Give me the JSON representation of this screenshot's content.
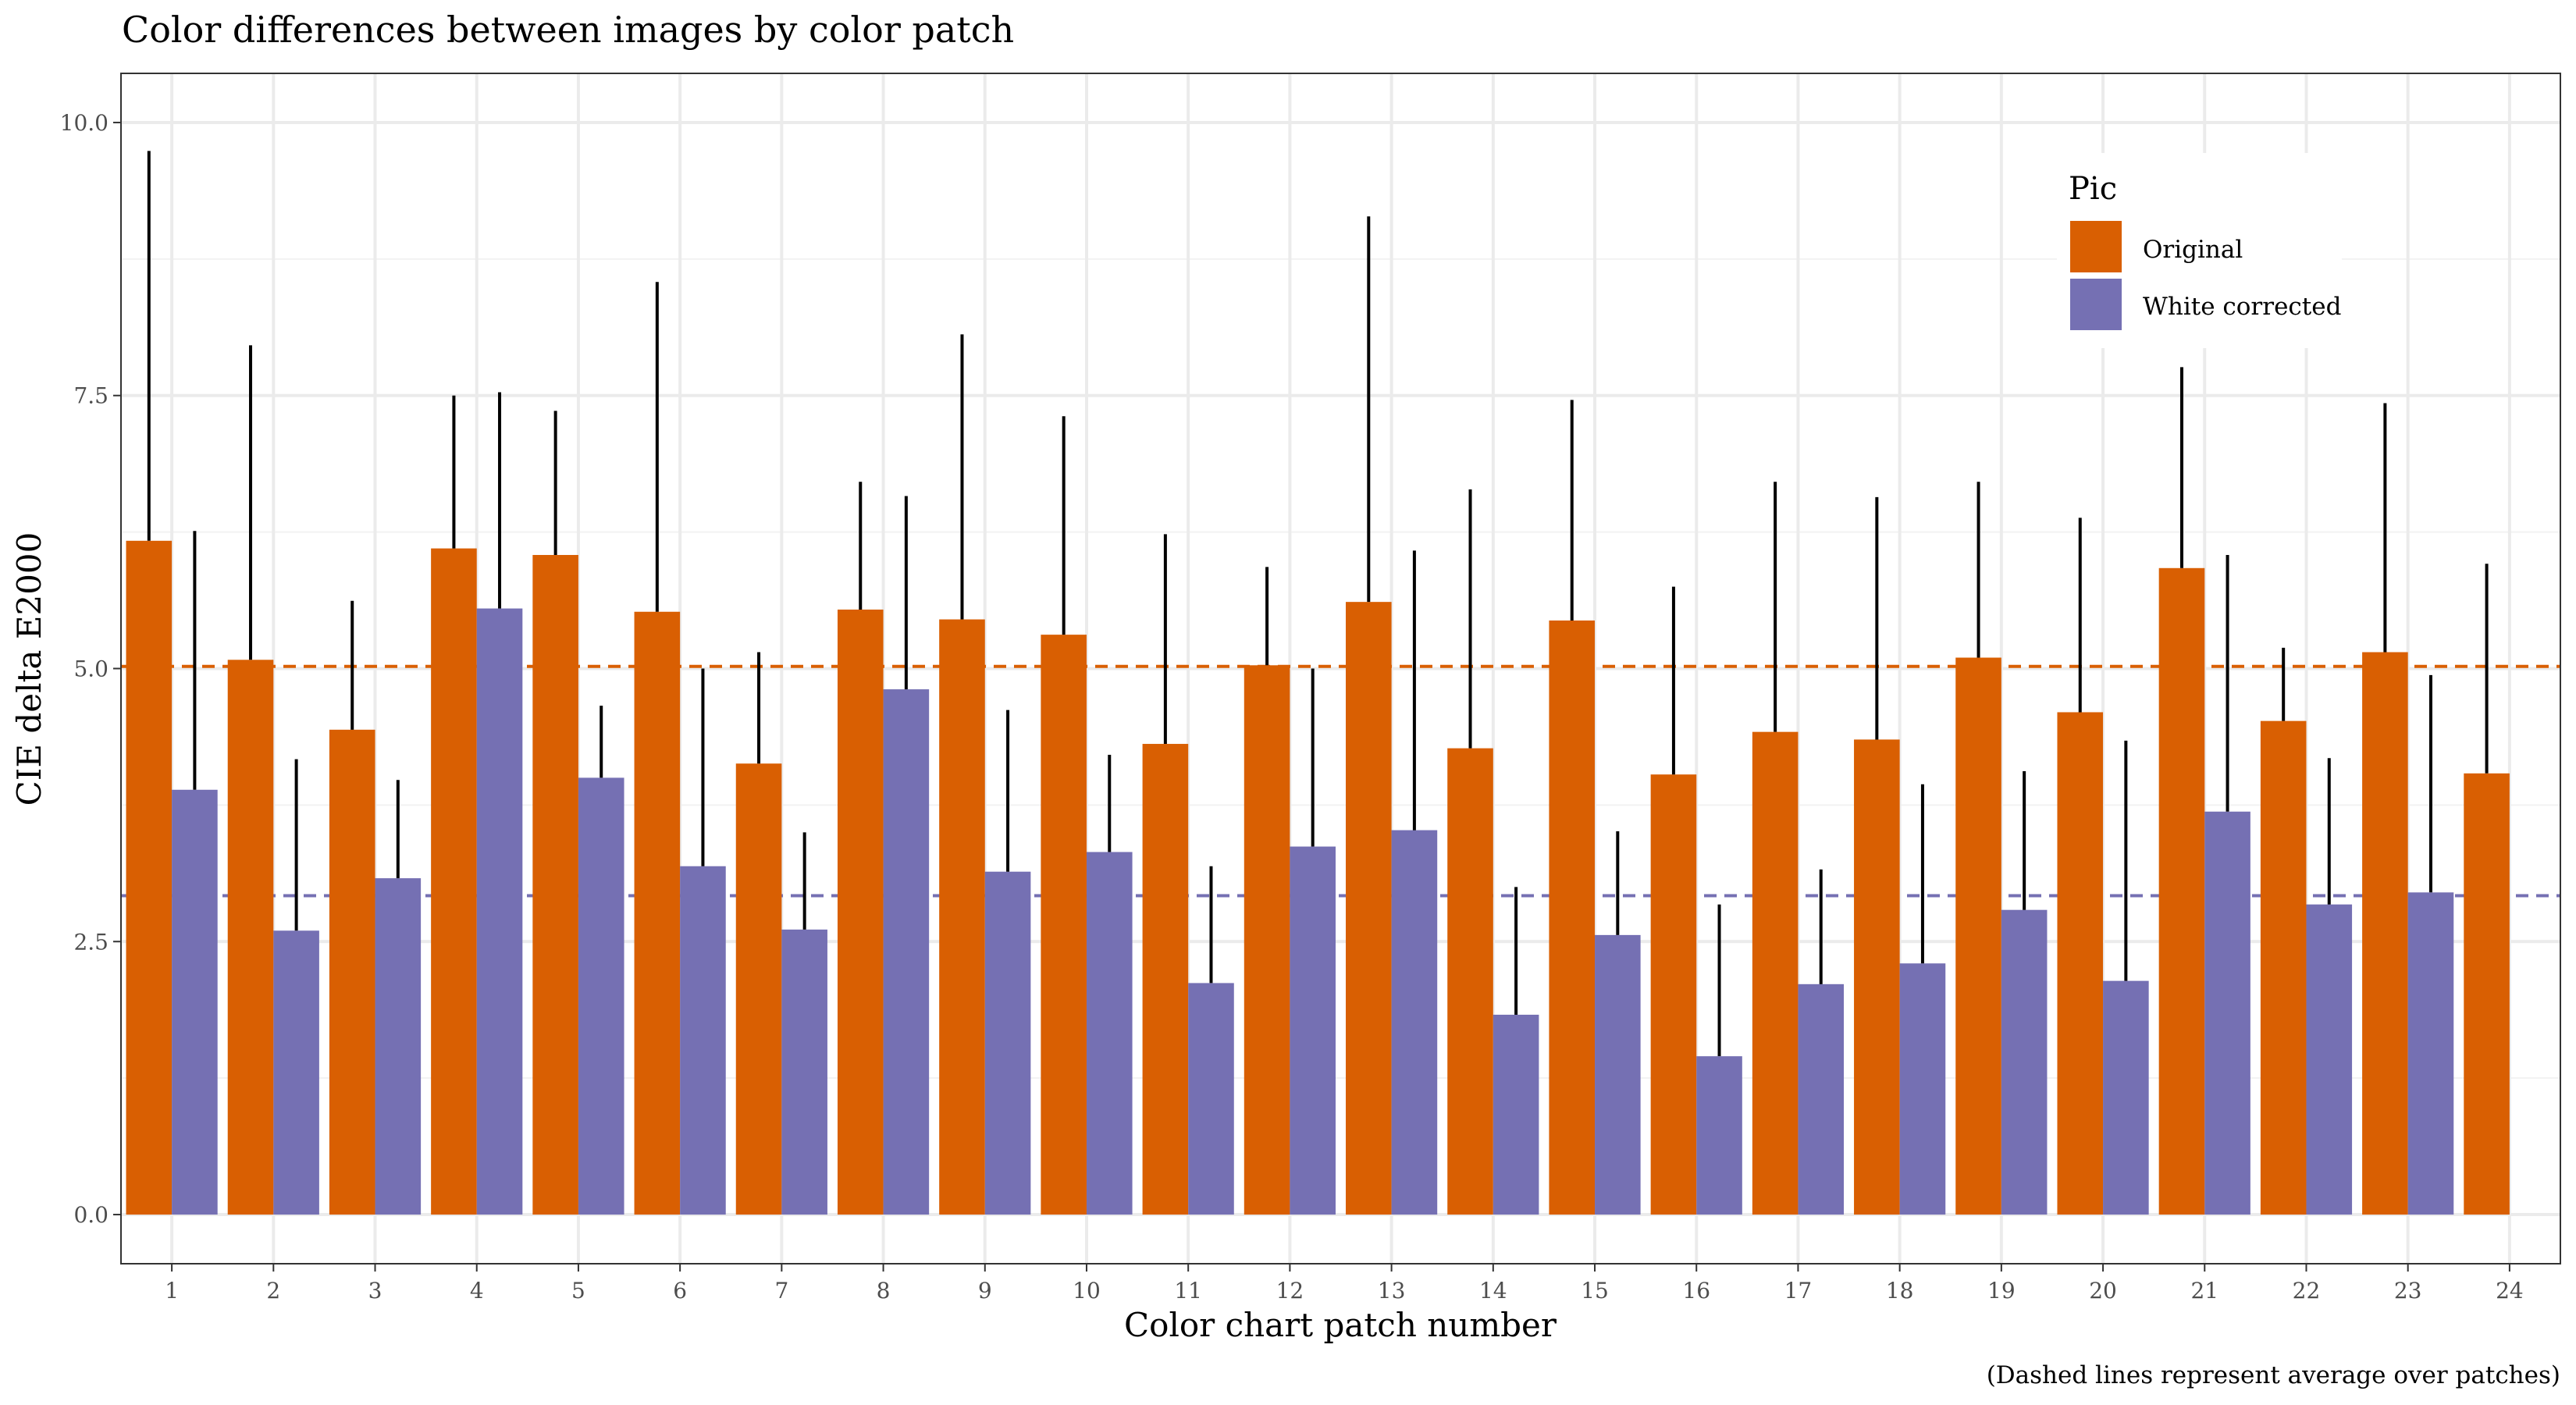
{
  "chart_data": {
    "type": "bar",
    "title": "Color differences between images by color patch",
    "xlabel": "Color chart patch number",
    "ylabel": "CIE delta E2000",
    "caption": "(Dashed lines represent average over patches)",
    "categories": [
      "1",
      "2",
      "3",
      "4",
      "5",
      "6",
      "7",
      "8",
      "9",
      "10",
      "11",
      "12",
      "13",
      "14",
      "15",
      "16",
      "17",
      "18",
      "19",
      "20",
      "21",
      "22",
      "23",
      "24"
    ],
    "ylim": [
      -0.45,
      10.45
    ],
    "yticks": [
      0.0,
      2.5,
      5.0,
      7.5,
      10.0
    ],
    "ytick_labels": [
      "0.0",
      "2.5",
      "5.0",
      "7.5",
      "10.0"
    ],
    "grid": true,
    "legend": {
      "title": "Pic",
      "position": "top-right inside"
    },
    "series": [
      {
        "name": "Original",
        "color": "#D95F02",
        "values": [
          6.17,
          5.08,
          4.44,
          6.1,
          6.04,
          5.52,
          4.13,
          5.54,
          5.45,
          5.31,
          4.31,
          5.03,
          5.61,
          4.27,
          5.44,
          4.03,
          4.42,
          4.35,
          5.1,
          4.6,
          5.92,
          4.52,
          5.15,
          4.04
        ],
        "error_upper": [
          9.74,
          7.96,
          5.62,
          7.5,
          7.36,
          8.54,
          5.15,
          6.71,
          8.06,
          7.31,
          6.23,
          5.93,
          9.14,
          6.64,
          7.46,
          5.75,
          6.71,
          6.57,
          6.71,
          6.38,
          7.76,
          5.19,
          7.43,
          5.96
        ],
        "mean": 5.02
      },
      {
        "name": "White corrected",
        "color": "#7570B3",
        "values": [
          3.89,
          2.6,
          3.08,
          5.55,
          4.0,
          3.19,
          2.61,
          4.81,
          3.14,
          3.32,
          2.12,
          3.37,
          3.52,
          1.83,
          2.56,
          1.45,
          2.11,
          2.3,
          2.79,
          2.14,
          3.69,
          2.84,
          2.95,
          null
        ],
        "error_upper": [
          6.26,
          4.17,
          3.98,
          7.53,
          4.66,
          5.0,
          3.5,
          6.58,
          4.62,
          4.21,
          3.19,
          5.0,
          6.08,
          3.0,
          3.51,
          2.84,
          3.16,
          3.94,
          4.06,
          4.34,
          6.04,
          4.18,
          4.94,
          null
        ],
        "mean": 2.92
      }
    ]
  }
}
